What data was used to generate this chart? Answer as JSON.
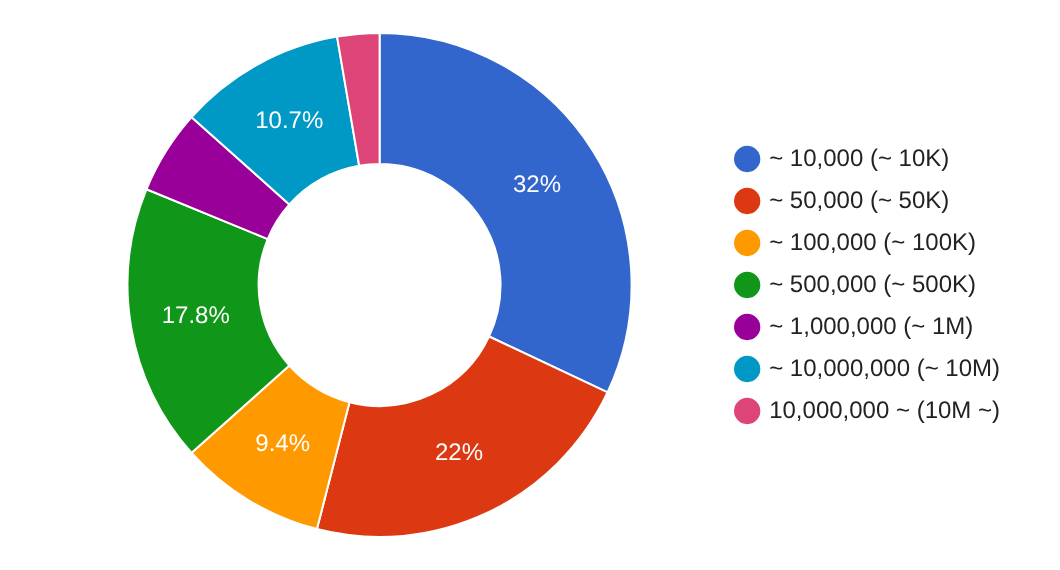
{
  "chart_data": {
    "type": "donut",
    "categories": [
      "~ 10,000 (~ 10K)",
      "~ 50,000 (~ 50K)",
      "~ 100,000 (~ 100K)",
      "~ 500,000 (~ 500K)",
      "~ 1,000,000 (~ 1M)",
      "~ 10,000,000 (~ 10M)",
      "10,000,000 ~ (10M ~)"
    ],
    "values": [
      32,
      22,
      9.4,
      17.8,
      5.4,
      10.7,
      2.7
    ],
    "colors": [
      "#3366cc",
      "#dc3912",
      "#ff9900",
      "#109618",
      "#990099",
      "#0099c6",
      "#dd4477"
    ],
    "value_labels": [
      "32%",
      "22%",
      "9.4%",
      "17.8%",
      null,
      "10.7%",
      null
    ],
    "legend": "right"
  }
}
